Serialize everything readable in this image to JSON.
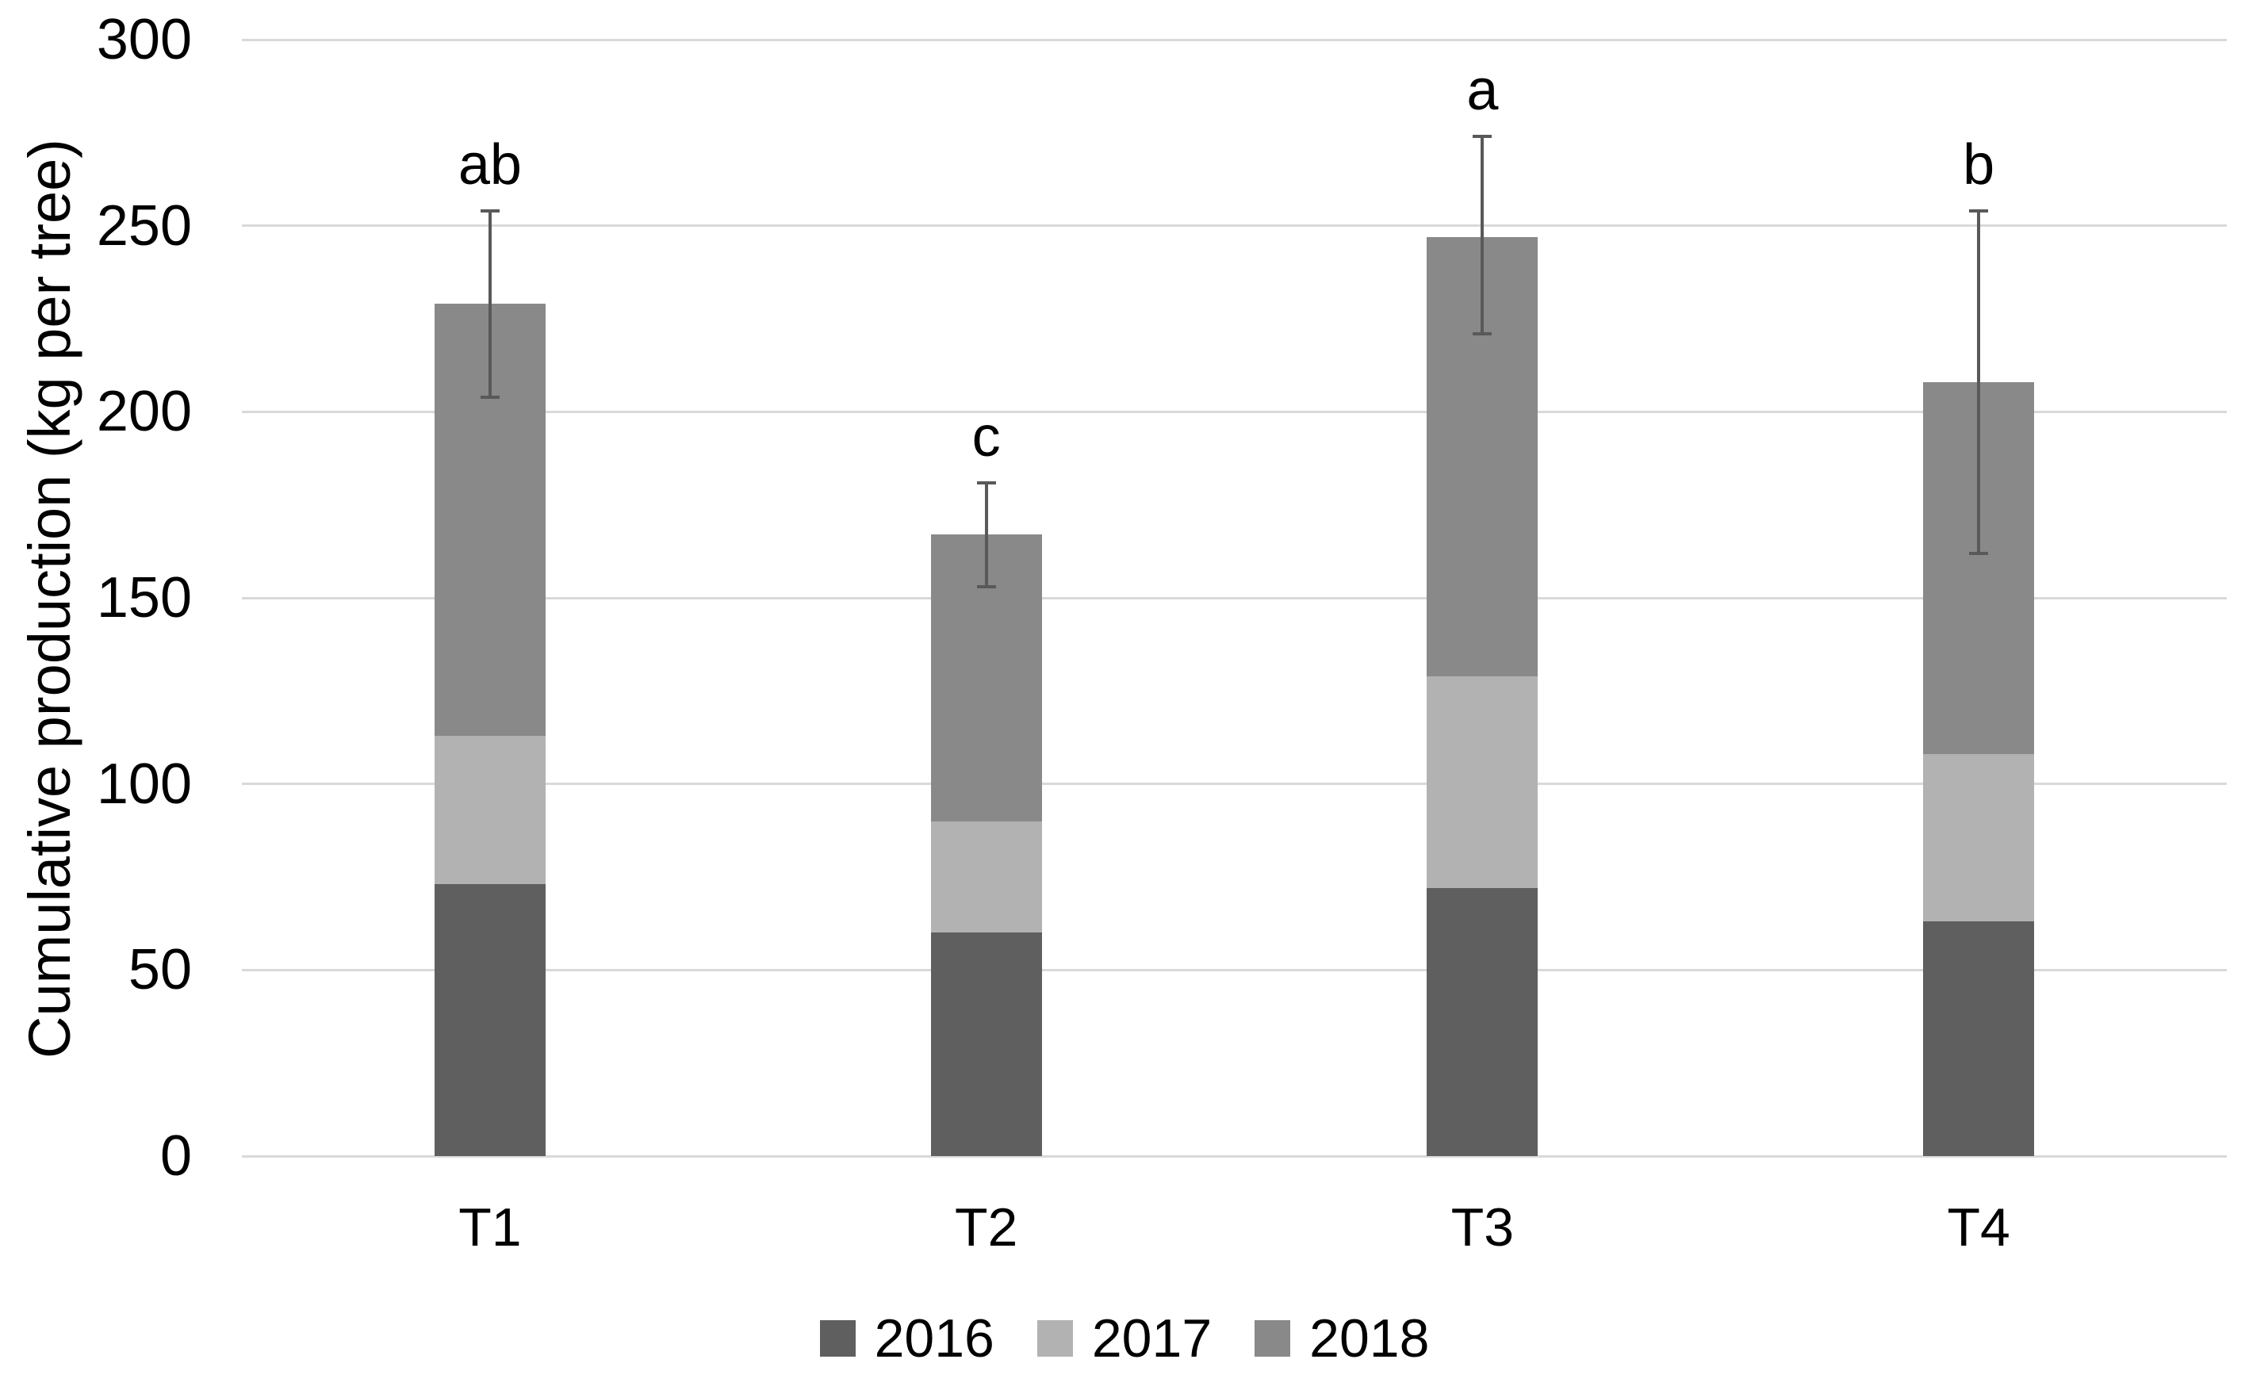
{
  "chart_data": {
    "type": "bar",
    "stacked": true,
    "title": "",
    "xlabel": "",
    "ylabel": "Cumulative production (kg per tree)",
    "categories": [
      "T1",
      "T2",
      "T3",
      "T4"
    ],
    "series": [
      {
        "name": "2016",
        "color": "#5f5f5f",
        "values": [
          73,
          60,
          72,
          63
        ]
      },
      {
        "name": "2017",
        "color": "#b2b2b2",
        "values": [
          40,
          30,
          57,
          45
        ]
      },
      {
        "name": "2018",
        "color": "#898989",
        "values": [
          116,
          77,
          118,
          100
        ]
      }
    ],
    "totals": [
      229,
      167,
      247,
      208
    ],
    "error_bars": {
      "upper": [
        254,
        181,
        274,
        254
      ],
      "lower": [
        204,
        153,
        221,
        162
      ]
    },
    "sig_letters": [
      "ab",
      "c",
      "a",
      "b"
    ],
    "y_ticks": [
      0,
      50,
      100,
      150,
      200,
      250,
      300
    ],
    "ylim": [
      0,
      300
    ],
    "grid": true,
    "legend_position": "bottom",
    "colors": {
      "gridline": "#d9d9d9",
      "error_bar": "#595959",
      "text": "#000000",
      "background": "#ffffff"
    }
  }
}
